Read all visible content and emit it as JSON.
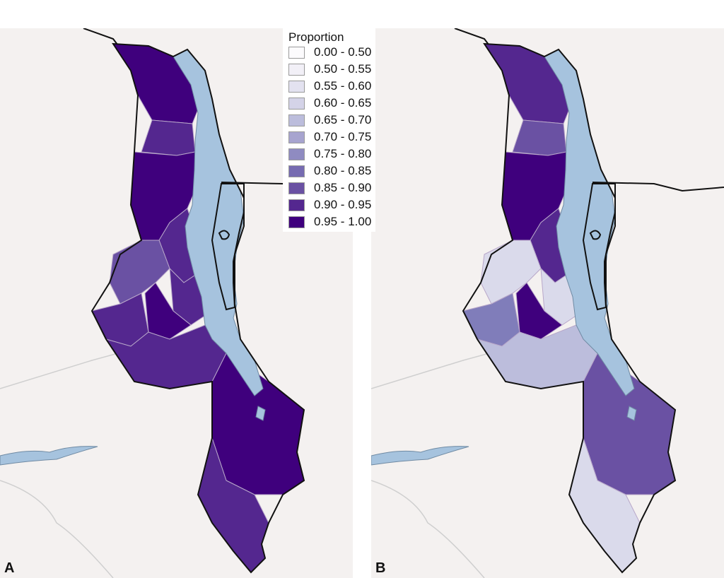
{
  "panels": [
    {
      "label": "A",
      "lakes_color": "#a6c3de",
      "districts": [
        "#3f007d",
        "#54278f",
        "#3f007d",
        "#54278f",
        "#6a51a3",
        "#54278f",
        "#3f007d",
        "#54278f",
        "#54278f",
        "#3f007d",
        "#54278f"
      ]
    },
    {
      "label": "B",
      "lakes_color": "#a6c3de",
      "districts": [
        "#54278f",
        "#6a51a3",
        "#3f007d",
        "#54278f",
        "#dadaeb",
        "#dadaeb",
        "#3f007d",
        "#807dba",
        "#bcbddc",
        "#6a51a3",
        "#dadaeb"
      ]
    }
  ],
  "legend": {
    "title": "Proportion",
    "items": [
      {
        "label": "0.00 - 0.50",
        "color": "#fcfbfd"
      },
      {
        "label": "0.50 - 0.55",
        "color": "#f2f0f7"
      },
      {
        "label": "0.55 - 0.60",
        "color": "#e3e2f0"
      },
      {
        "label": "0.60 - 0.65",
        "color": "#d4d3e8"
      },
      {
        "label": "0.65 - 0.70",
        "color": "#bcbddc"
      },
      {
        "label": "0.70 - 0.75",
        "color": "#a7a4cf"
      },
      {
        "label": "0.75 - 0.80",
        "color": "#8f8bc1"
      },
      {
        "label": "0.80 - 0.85",
        "color": "#766bb1"
      },
      {
        "label": "0.85 - 0.90",
        "color": "#6a51a3"
      },
      {
        "label": "0.90 - 0.95",
        "color": "#54278f"
      },
      {
        "label": "0.95 - 1.00",
        "color": "#3f007d"
      }
    ]
  }
}
